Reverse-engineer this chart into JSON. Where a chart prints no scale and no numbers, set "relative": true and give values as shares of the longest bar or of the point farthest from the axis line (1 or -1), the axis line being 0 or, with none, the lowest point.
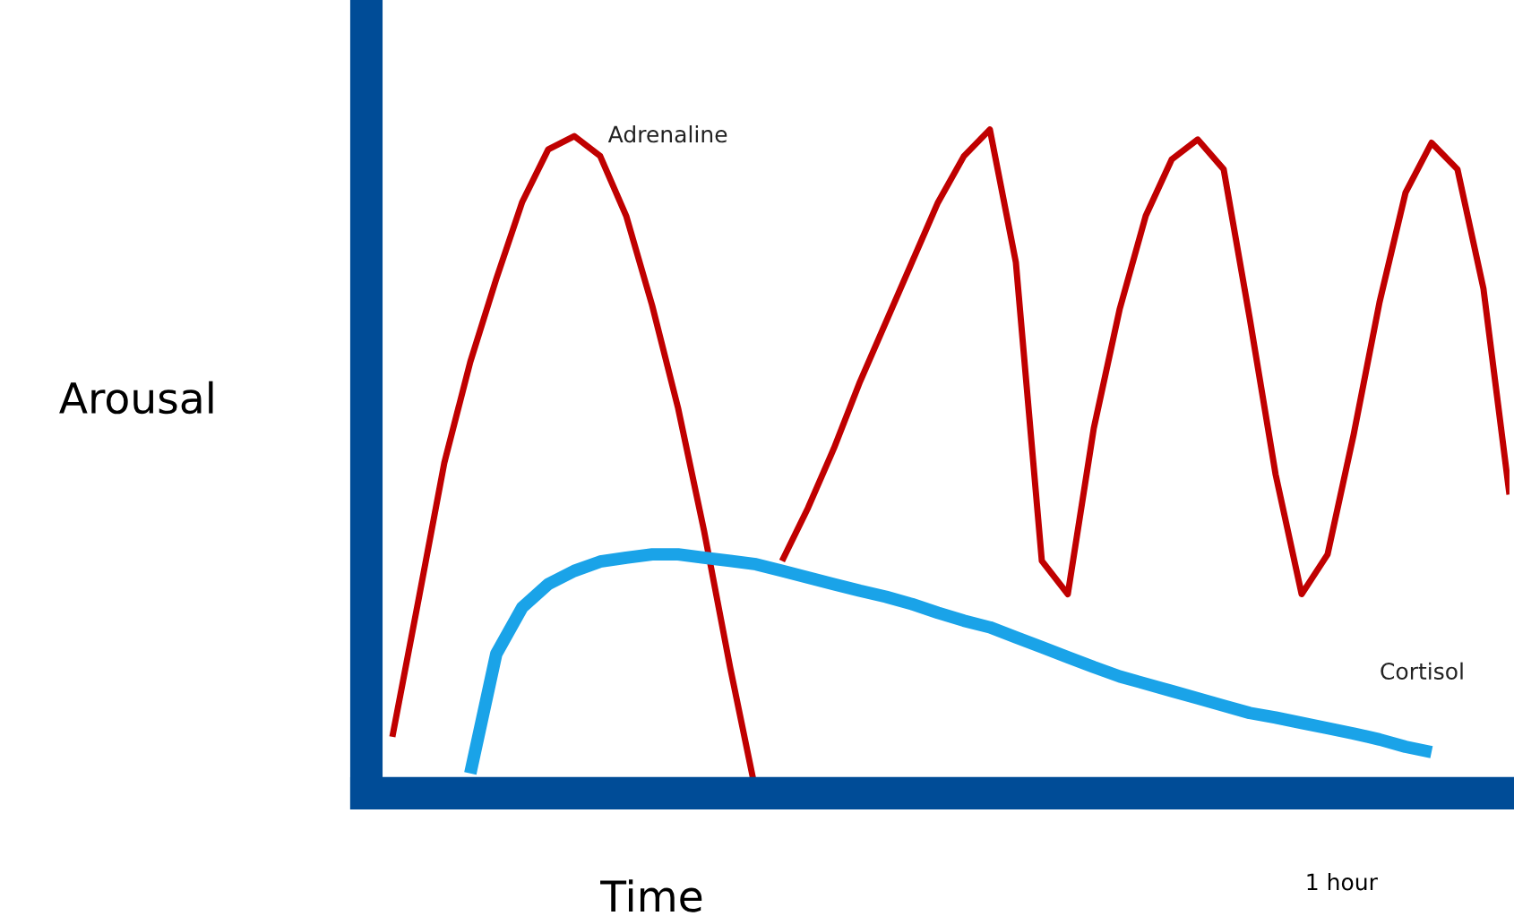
{
  "chart_data": {
    "type": "line",
    "relative": true,
    "xlabel": "Time",
    "ylabel": "Arousal",
    "annotations": [
      "1 hour"
    ],
    "marker": "none",
    "line_style": "solid",
    "categories": [
      null,
      null,
      null,
      null,
      null,
      null,
      null,
      null,
      null,
      null,
      null,
      null,
      null,
      null,
      null,
      null,
      null,
      null,
      null,
      null,
      null,
      null,
      null,
      null,
      null,
      null,
      null,
      null,
      null,
      null,
      null,
      null,
      null,
      null,
      null,
      null,
      null,
      null,
      null,
      null,
      null,
      null,
      null,
      null,
      null
    ],
    "series": [
      {
        "name": "Adrenaline",
        "color": "#c00000",
        "values": [
          null,
          0.085,
          0.29,
          0.498,
          0.65,
          0.775,
          0.891,
          0.97,
          0.99,
          0.96,
          0.87,
          0.735,
          0.58,
          0.395,
          0.19,
          0.0,
          null,
          null,
          null,
          null,
          null,
          null,
          null,
          null,
          null,
          null,
          null,
          null,
          null,
          null,
          null,
          null,
          null,
          null,
          null,
          null,
          null,
          null,
          null,
          null,
          null,
          null,
          null,
          null,
          null
        ]
      },
      {
        "color": "#c00000",
        "values": [
          null,
          null,
          null,
          null,
          null,
          null,
          null,
          null,
          null,
          null,
          null,
          null,
          null,
          null,
          null,
          null,
          0.35,
          0.43,
          0.52,
          0.62,
          0.71,
          0.8,
          0.89,
          0.96,
          1.0,
          0.8,
          0.35,
          0.3,
          0.55,
          0.73,
          0.87,
          0.955,
          0.985,
          0.94,
          0.716,
          0.48,
          0.3,
          0.36,
          0.54,
          0.74,
          0.905,
          0.98,
          0.94,
          0.76,
          0.45
        ]
      },
      {
        "name": "Cortisol",
        "color": "#1aa3e8",
        "values": [
          null,
          null,
          null,
          null,
          0.03,
          0.21,
          0.28,
          0.315,
          0.335,
          0.349,
          0.355,
          0.36,
          0.36,
          0.355,
          0.35,
          0.345,
          0.335,
          0.325,
          0.315,
          0.305,
          0.296,
          0.285,
          0.272,
          0.26,
          0.25,
          0.235,
          0.22,
          0.205,
          0.19,
          0.176,
          0.165,
          0.154,
          0.143,
          0.132,
          0.121,
          0.114,
          0.106,
          0.098,
          0.09,
          0.081,
          0.07,
          0.062,
          null,
          null,
          null
        ]
      }
    ]
  }
}
